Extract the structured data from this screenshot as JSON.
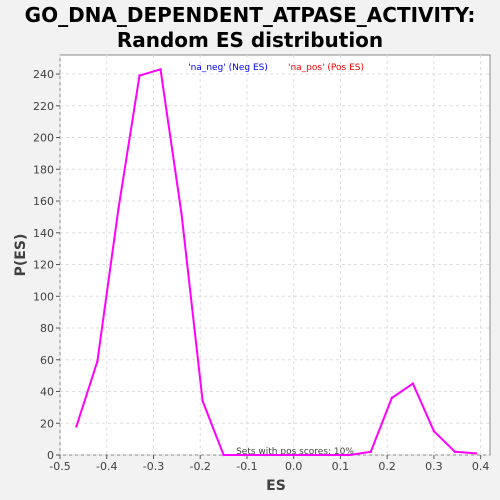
{
  "chart_data": {
    "type": "line",
    "title": "GO_DNA_DEPENDENT_ATPASE_ACTIVITY:",
    "subtitle": "Random ES distribution",
    "xlabel": "ES",
    "ylabel": "P(ES)",
    "xlim": [
      -0.5,
      0.42
    ],
    "ylim": [
      0,
      252
    ],
    "xticks": [
      "-0.5",
      "-0.4",
      "-0.3",
      "-0.2",
      "-0.1",
      "0.0",
      "0.1",
      "0.2",
      "0.3",
      "0.4"
    ],
    "xtick_values": [
      -0.5,
      -0.4,
      -0.3,
      -0.2,
      -0.1,
      0.0,
      0.1,
      0.2,
      0.3,
      0.4
    ],
    "yticks": [
      "0",
      "20",
      "40",
      "60",
      "80",
      "100",
      "120",
      "140",
      "160",
      "180",
      "200",
      "220",
      "240"
    ],
    "ytick_values": [
      0,
      20,
      40,
      60,
      80,
      100,
      120,
      140,
      160,
      180,
      200,
      220,
      240
    ],
    "grid": true,
    "legend": [
      {
        "label": "'na_neg' (Neg ES)",
        "color": "#0000ff"
      },
      {
        "label": "'na_pos' (Pos ES)",
        "color": "#ff0000"
      }
    ],
    "legend_position": "top-center",
    "annotation": "Sets with pos scores: 10%",
    "series": [
      {
        "color": "#ff00ff",
        "x": [
          -0.465,
          -0.42,
          -0.375,
          -0.33,
          -0.285,
          -0.24,
          -0.195,
          -0.15,
          -0.105,
          -0.06,
          -0.015,
          0.03,
          0.075,
          0.12,
          0.165,
          0.21,
          0.255,
          0.3,
          0.345,
          0.39
        ],
        "y": [
          18,
          59,
          155,
          239,
          243,
          152,
          34,
          0,
          0,
          0,
          0,
          0,
          0,
          0,
          2,
          36,
          45,
          15,
          2,
          1
        ]
      }
    ]
  }
}
